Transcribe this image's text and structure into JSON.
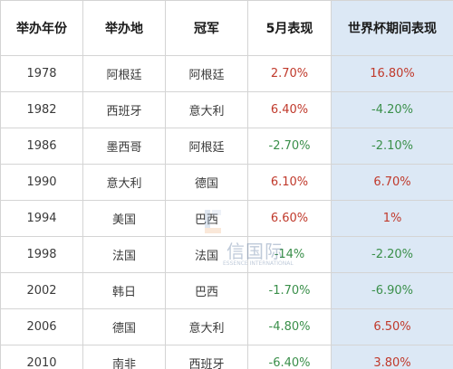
{
  "table": {
    "headers": [
      "举办年份",
      "举办地",
      "冠军",
      "5月表现",
      "世界杯期间表现"
    ],
    "rows": [
      {
        "year": "1978",
        "host": "阿根廷",
        "champion": "阿根廷",
        "may": "2.70%",
        "worldcup": "16.80%",
        "may_sign": "pos",
        "wc_sign": "pos"
      },
      {
        "year": "1982",
        "host": "西班牙",
        "champion": "意大利",
        "may": "6.40%",
        "worldcup": "-4.20%",
        "may_sign": "pos",
        "wc_sign": "neg"
      },
      {
        "year": "1986",
        "host": "墨西哥",
        "champion": "阿根廷",
        "may": "-2.70%",
        "worldcup": "-2.10%",
        "may_sign": "neg",
        "wc_sign": "neg"
      },
      {
        "year": "1990",
        "host": "意大利",
        "champion": "德国",
        "may": "6.10%",
        "worldcup": "6.70%",
        "may_sign": "pos",
        "wc_sign": "pos"
      },
      {
        "year": "1994",
        "host": "美国",
        "champion": "巴西",
        "may": "6.60%",
        "worldcup": "1%",
        "may_sign": "pos",
        "wc_sign": "pos"
      },
      {
        "year": "1998",
        "host": "法国",
        "champion": "法国",
        "may": "-14%",
        "worldcup": "-2.20%",
        "may_sign": "neg",
        "wc_sign": "neg"
      },
      {
        "year": "2002",
        "host": "韩日",
        "champion": "巴西",
        "may": "-1.70%",
        "worldcup": "-6.90%",
        "may_sign": "neg",
        "wc_sign": "neg"
      },
      {
        "year": "2006",
        "host": "德国",
        "champion": "意大利",
        "may": "-4.80%",
        "worldcup": "6.50%",
        "may_sign": "neg",
        "wc_sign": "pos"
      },
      {
        "year": "2010",
        "host": "南非",
        "champion": "西班牙",
        "may": "-6.40%",
        "worldcup": "3.80%",
        "may_sign": "neg",
        "wc_sign": "pos"
      }
    ]
  },
  "watermark": {
    "text": "信国际",
    "subtext": "ESSENCE INTERNATIONAL"
  },
  "colors": {
    "positive": "#c0392b",
    "negative": "#3a8f4a",
    "highlight_column": "#dce8f5",
    "border": "#d4d4d4"
  }
}
